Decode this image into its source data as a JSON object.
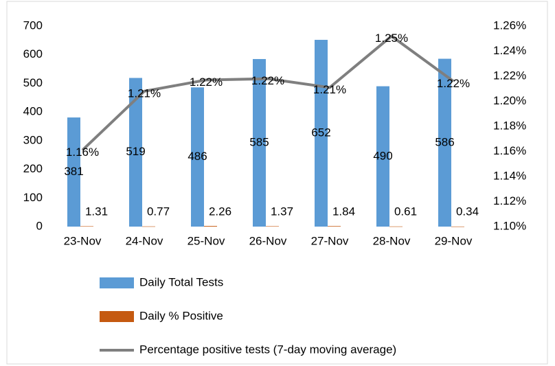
{
  "chart_data": {
    "type": "bar-line",
    "categories": [
      "23-Nov",
      "24-Nov",
      "25-Nov",
      "26-Nov",
      "27-Nov",
      "28-Nov",
      "29-Nov"
    ],
    "series": [
      {
        "name": "Daily Total Tests",
        "type": "bar",
        "color": "#5b9bd5",
        "values": [
          381,
          519,
          486,
          585,
          652,
          490,
          586
        ]
      },
      {
        "name": "Daily % Positive",
        "type": "bar",
        "color": "#c55a11",
        "values": [
          1.31,
          0.77,
          2.26,
          1.37,
          1.84,
          0.61,
          0.34
        ]
      },
      {
        "name": "Percentage positive tests (7-day moving average)",
        "type": "line",
        "axis": "y2",
        "color": "#7f7f7f",
        "values": [
          1.161,
          1.208,
          1.217,
          1.218,
          1.211,
          1.252,
          1.216
        ],
        "value_labels": [
          "1.16%",
          "1.21%",
          "1.22%",
          "1.22%",
          "1.21%",
          "1.25%",
          "1.22%"
        ]
      }
    ],
    "ylim": [
      0,
      700
    ],
    "yticks": [
      0,
      100,
      200,
      300,
      400,
      500,
      600,
      700
    ],
    "y2lim": [
      1.1,
      1.26
    ],
    "y2ticks": [
      {
        "value": 1.1,
        "label": "1.10%"
      },
      {
        "value": 1.12,
        "label": "1.12%"
      },
      {
        "value": 1.14,
        "label": "1.14%"
      },
      {
        "value": 1.16,
        "label": "1.16%"
      },
      {
        "value": 1.18,
        "label": "1.18%"
      },
      {
        "value": 1.2,
        "label": "1.20%"
      },
      {
        "value": 1.22,
        "label": "1.22%"
      },
      {
        "value": 1.24,
        "label": "1.24%"
      },
      {
        "value": 1.26,
        "label": "1.26%"
      }
    ],
    "grid": false,
    "legend": "bottom"
  }
}
